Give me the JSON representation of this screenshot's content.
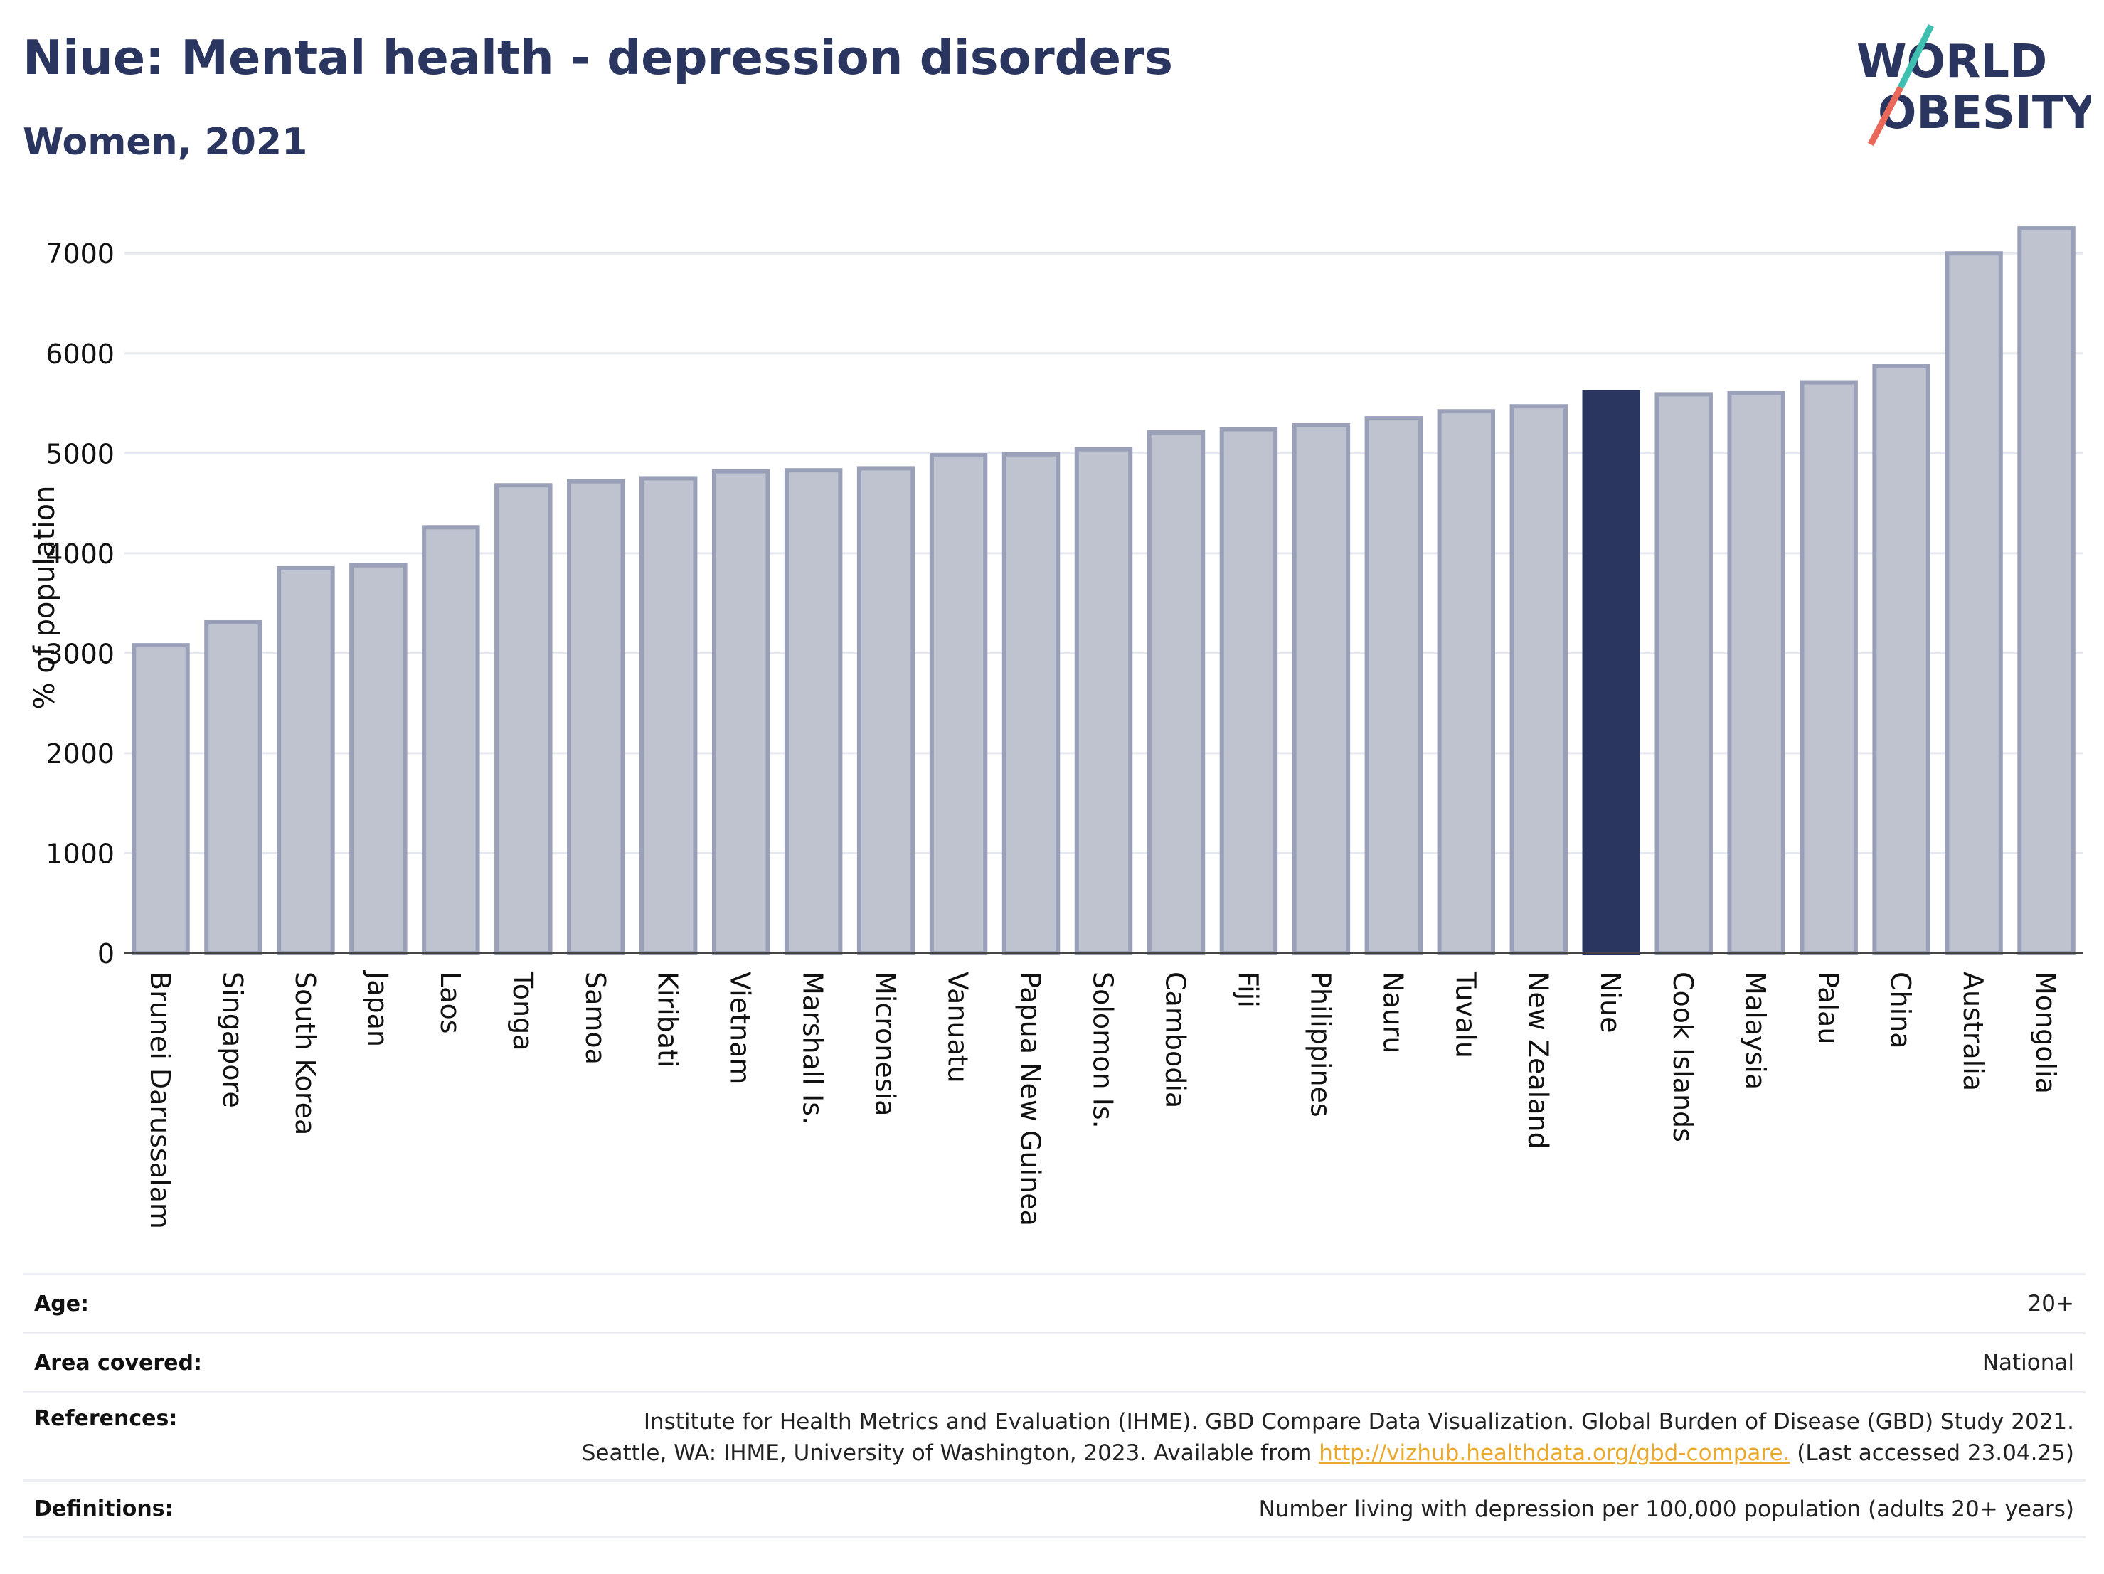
{
  "header": {
    "title": "Niue: Mental health - depression disorders",
    "subtitle": "Women, 2021"
  },
  "logo": {
    "line1": "WORLD",
    "line2": "OBESITY",
    "slash_colors": [
      "#3ebfb0",
      "#e9685a"
    ]
  },
  "chart_data": {
    "type": "bar",
    "ylabel": "% of population",
    "ylim": [
      0,
      7400
    ],
    "yticks": [
      0,
      1000,
      2000,
      3000,
      4000,
      5000,
      6000,
      7000
    ],
    "grid": true,
    "highlight": "Niue",
    "colors": {
      "bar": "#bfc2cf",
      "bar_edge": "#9aa0b8",
      "highlight": "#2a3660"
    },
    "categories": [
      "Brunei Darussalam",
      "Singapore",
      "South Korea",
      "Japan",
      "Laos",
      "Tonga",
      "Samoa",
      "Kiribati",
      "Vietnam",
      "Marshall Is.",
      "Micronesia",
      "Vanuatu",
      "Papua New Guinea",
      "Solomon Is.",
      "Cambodia",
      "Fiji",
      "Philippines",
      "Nauru",
      "Tuvalu",
      "New Zealand",
      "Niue",
      "Cook Islands",
      "Malaysia",
      "Palau",
      "China",
      "Australia",
      "Mongolia"
    ],
    "values": [
      3080,
      3310,
      3850,
      3880,
      4260,
      4680,
      4720,
      4750,
      4820,
      4830,
      4850,
      4980,
      4990,
      5040,
      5210,
      5240,
      5280,
      5350,
      5420,
      5470,
      5610,
      5590,
      5600,
      5710,
      5870,
      7000,
      7250
    ]
  },
  "meta": {
    "age": {
      "label": "Age:",
      "value": "20+"
    },
    "area": {
      "label": "Area covered:",
      "value": "National"
    },
    "references": {
      "label": "References:",
      "line1": "Institute for Health Metrics and Evaluation (IHME). GBD Compare Data Visualization. Global Burden of Disease (GBD) Study 2021.",
      "line2_pre": "Seattle, WA: IHME, University of Washington, 2023. Available from ",
      "link": "http://vizhub.healthdata.org/gbd-compare.",
      "line2_post": " (Last accessed 23.04.25)"
    },
    "definitions": {
      "label": "Definitions:",
      "value": "Number living with depression per 100,000 population (adults 20+ years)"
    }
  }
}
